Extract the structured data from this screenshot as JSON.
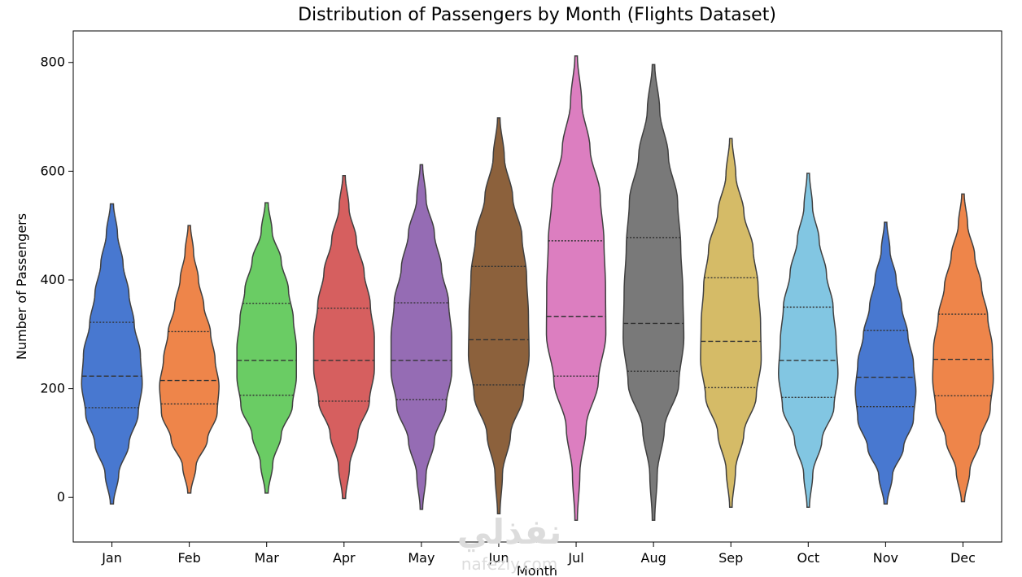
{
  "chart_data": {
    "type": "violin",
    "title": "Distribution of Passengers by Month (Flights Dataset)",
    "xlabel": "Month",
    "ylabel": "Number of Passengers",
    "ylim": [
      -82,
      858
    ],
    "yticks": [
      0,
      200,
      400,
      600,
      800
    ],
    "grid": false,
    "inner": "quartile",
    "categories": [
      "Jan",
      "Feb",
      "Mar",
      "Apr",
      "May",
      "Jun",
      "Jul",
      "Aug",
      "Sep",
      "Oct",
      "Nov",
      "Dec"
    ],
    "colors": [
      "#4878d0",
      "#ee854a",
      "#6acc64",
      "#d65f5f",
      "#956cb4",
      "#8c613c",
      "#dc7ec0",
      "#797979",
      "#d5bb67",
      "#82c6e2",
      "#4878d0",
      "#ee854a"
    ],
    "violins": [
      {
        "month": "Jan",
        "min": -12,
        "max": 540,
        "q1": 165,
        "median": 223,
        "q3": 322,
        "width": 1.0,
        "profile": [
          0.05,
          0.22,
          0.55,
          0.85,
          0.98,
          0.92,
          0.72,
          0.55,
          0.36,
          0.18,
          0.05
        ]
      },
      {
        "month": "Feb",
        "min": 8,
        "max": 500,
        "q1": 172,
        "median": 215,
        "q3": 305,
        "width": 0.98,
        "profile": [
          0.05,
          0.22,
          0.6,
          0.92,
          0.98,
          0.85,
          0.7,
          0.48,
          0.3,
          0.14,
          0.04
        ]
      },
      {
        "month": "Mar",
        "min": 8,
        "max": 542,
        "q1": 188,
        "median": 252,
        "q3": 357,
        "width": 0.98,
        "profile": [
          0.05,
          0.2,
          0.48,
          0.85,
          0.98,
          0.98,
          0.88,
          0.72,
          0.48,
          0.18,
          0.05
        ]
      },
      {
        "month": "Apr",
        "min": -2,
        "max": 592,
        "q1": 177,
        "median": 252,
        "q3": 348,
        "width": 1.0,
        "profile": [
          0.05,
          0.18,
          0.45,
          0.82,
          0.98,
          0.98,
          0.85,
          0.65,
          0.4,
          0.16,
          0.04
        ]
      },
      {
        "month": "May",
        "min": -22,
        "max": 612,
        "q1": 180,
        "median": 252,
        "q3": 358,
        "width": 1.0,
        "profile": [
          0.04,
          0.15,
          0.42,
          0.8,
          0.98,
          0.98,
          0.88,
          0.65,
          0.42,
          0.15,
          0.04
        ]
      },
      {
        "month": "Jun",
        "min": -30,
        "max": 698,
        "q1": 207,
        "median": 290,
        "q3": 425,
        "width": 1.0,
        "profile": [
          0.04,
          0.12,
          0.38,
          0.8,
          0.98,
          0.96,
          0.9,
          0.75,
          0.45,
          0.18,
          0.04
        ]
      },
      {
        "month": "Jul",
        "min": -42,
        "max": 812,
        "q1": 223,
        "median": 333,
        "q3": 472,
        "width": 1.0,
        "profile": [
          0.04,
          0.12,
          0.32,
          0.72,
          0.96,
          0.95,
          0.9,
          0.78,
          0.45,
          0.18,
          0.04
        ]
      },
      {
        "month": "Aug",
        "min": -42,
        "max": 796,
        "q1": 232,
        "median": 320,
        "q3": 478,
        "width": 1.0,
        "profile": [
          0.04,
          0.12,
          0.35,
          0.82,
          0.98,
          0.95,
          0.88,
          0.78,
          0.48,
          0.2,
          0.04
        ]
      },
      {
        "month": "Sep",
        "min": -18,
        "max": 660,
        "q1": 202,
        "median": 287,
        "q3": 404,
        "width": 1.0,
        "profile": [
          0.04,
          0.15,
          0.42,
          0.82,
          0.98,
          0.96,
          0.88,
          0.72,
          0.42,
          0.16,
          0.04
        ]
      },
      {
        "month": "Oct",
        "min": -18,
        "max": 596,
        "q1": 184,
        "median": 252,
        "q3": 350,
        "width": 0.98,
        "profile": [
          0.04,
          0.15,
          0.45,
          0.85,
          0.98,
          0.92,
          0.82,
          0.6,
          0.36,
          0.14,
          0.04
        ]
      },
      {
        "month": "Nov",
        "min": -12,
        "max": 506,
        "q1": 167,
        "median": 221,
        "q3": 307,
        "width": 1.0,
        "profile": [
          0.05,
          0.22,
          0.58,
          0.9,
          0.98,
          0.9,
          0.72,
          0.52,
          0.34,
          0.14,
          0.04
        ]
      },
      {
        "month": "Dec",
        "min": -8,
        "max": 558,
        "q1": 187,
        "median": 254,
        "q3": 337,
        "width": 1.0,
        "profile": [
          0.05,
          0.22,
          0.55,
          0.88,
          0.98,
          0.95,
          0.8,
          0.6,
          0.38,
          0.15,
          0.04
        ]
      }
    ]
  },
  "watermark": {
    "logo": "نفذلي",
    "text": "nafezly.com"
  }
}
